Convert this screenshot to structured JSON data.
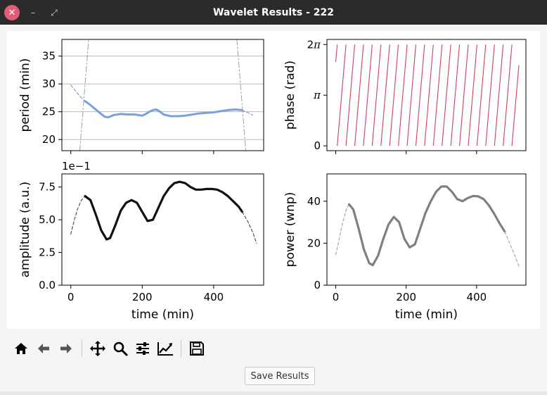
{
  "window": {
    "title": "Wavelet Results - 222",
    "close_glyph": "✕",
    "minimize_glyph": "–",
    "maximize_glyph": "⤢"
  },
  "toolbar": {
    "buttons": [
      {
        "name": "home-button",
        "icon": "home-icon"
      },
      {
        "name": "back-button",
        "icon": "arrow-left-icon"
      },
      {
        "name": "forward-button",
        "icon": "arrow-right-icon"
      },
      {
        "name": "pan-button",
        "icon": "move-icon"
      },
      {
        "name": "zoom-button",
        "icon": "magnifier-icon"
      },
      {
        "name": "configure-subplots-button",
        "icon": "sliders-icon"
      },
      {
        "name": "edit-axis-button",
        "icon": "line-chart-icon"
      },
      {
        "name": "save-figure-button",
        "icon": "floppy-disk-icon"
      }
    ]
  },
  "save_results_label": "Save Results",
  "chart_data": [
    {
      "type": "line",
      "ylabel": "period (min)",
      "xlim": [
        -25,
        540
      ],
      "ylim": [
        18,
        38
      ],
      "yticks": [
        20,
        25,
        30,
        35
      ],
      "grid": "horizontal",
      "series": [
        {
          "style": "dashed",
          "color": "#7aa0e0",
          "x": [
            0,
            10,
            20,
            30,
            40
          ],
          "y": [
            29.8,
            29.0,
            28.2,
            27.5,
            26.9
          ]
        },
        {
          "style": "solid-thick",
          "color": "#7aa0e0",
          "x": [
            40,
            55,
            70,
            85,
            95,
            105,
            120,
            140,
            160,
            180,
            200,
            210,
            220,
            230,
            240,
            250,
            260,
            280,
            300,
            320,
            340,
            360,
            380,
            400,
            420,
            440,
            460,
            480
          ],
          "y": [
            26.9,
            26.2,
            25.4,
            24.6,
            24.1,
            24.0,
            24.4,
            24.6,
            24.5,
            24.5,
            24.3,
            24.6,
            25.0,
            25.3,
            25.4,
            25.0,
            24.5,
            24.2,
            24.2,
            24.3,
            24.5,
            24.7,
            24.8,
            24.9,
            25.1,
            25.3,
            25.4,
            25.3
          ]
        },
        {
          "style": "dashed",
          "color": "#7aa0e0",
          "x": [
            480,
            490,
            500,
            510
          ],
          "y": [
            25.3,
            25.0,
            24.7,
            24.4
          ]
        },
        {
          "style": "dash-dot",
          "color": "#a0a0a0",
          "name": "coi-left",
          "x": [
            25,
            50
          ],
          "y": [
            18,
            38
          ]
        },
        {
          "style": "dash-dot",
          "color": "#a0a0a0",
          "name": "coi-right",
          "x": [
            465,
            490
          ],
          "y": [
            38,
            18
          ]
        }
      ]
    },
    {
      "type": "line",
      "ylabel": "phase (rad)",
      "xlim": [
        -25,
        540
      ],
      "ylim": [
        -0.3,
        6.6
      ],
      "yticks": [
        "0",
        "π",
        "2π"
      ],
      "series": [
        {
          "style": "sawtooth",
          "color": "#d0405a",
          "cycles_start": 0,
          "cycles_end": 520,
          "period_min": 24.8
        }
      ]
    },
    {
      "type": "line",
      "ylabel": "amplitude (a.u.)",
      "xlabel": "time (min)",
      "offset_label": "1e−1",
      "xlim": [
        -25,
        540
      ],
      "ylim": [
        0,
        8.5
      ],
      "yticks": [
        "0.0",
        "2.5",
        "5.0",
        "7.5"
      ],
      "xticks": [
        0,
        200,
        400
      ],
      "series": [
        {
          "style": "dashed",
          "color": "#555555",
          "x": [
            0,
            10,
            20,
            30,
            40
          ],
          "y": [
            3.9,
            5.0,
            5.9,
            6.5,
            6.8
          ]
        },
        {
          "style": "solid-thick",
          "color": "#111111",
          "x": [
            40,
            55,
            70,
            85,
            100,
            110,
            125,
            140,
            155,
            170,
            185,
            200,
            215,
            230,
            245,
            260,
            275,
            290,
            305,
            320,
            335,
            350,
            365,
            380,
            395,
            410,
            425,
            440,
            455,
            470,
            480
          ],
          "y": [
            6.8,
            6.5,
            5.4,
            4.2,
            3.5,
            3.6,
            4.6,
            5.7,
            6.3,
            6.5,
            6.3,
            5.6,
            4.9,
            5.0,
            5.9,
            6.8,
            7.4,
            7.8,
            7.9,
            7.8,
            7.5,
            7.3,
            7.3,
            7.35,
            7.35,
            7.3,
            7.1,
            6.8,
            6.4,
            6.0,
            5.6
          ]
        },
        {
          "style": "dashed",
          "color": "#555555",
          "x": [
            480,
            495,
            510,
            520
          ],
          "y": [
            5.6,
            4.9,
            4.0,
            3.2
          ]
        }
      ]
    },
    {
      "type": "line",
      "ylabel": "power (wnp)",
      "xlabel": "time (min)",
      "xlim": [
        -25,
        540
      ],
      "ylim": [
        0,
        53
      ],
      "yticks": [
        "0",
        "20",
        "40"
      ],
      "xticks": [
        0,
        200,
        400
      ],
      "series": [
        {
          "style": "dashed",
          "color": "#aaaaaa",
          "x": [
            0,
            10,
            20,
            30,
            38
          ],
          "y": [
            14.5,
            22,
            30,
            36,
            38.5
          ]
        },
        {
          "style": "solid-thick",
          "color": "#808080",
          "x": [
            38,
            50,
            65,
            80,
            95,
            105,
            120,
            135,
            150,
            165,
            180,
            195,
            210,
            225,
            240,
            255,
            270,
            285,
            300,
            315,
            330,
            345,
            360,
            375,
            390,
            405,
            420,
            435,
            450,
            465,
            480
          ],
          "y": [
            38.5,
            36,
            27,
            17,
            10.5,
            9.5,
            14,
            22,
            29,
            32.5,
            30,
            22,
            18,
            19.5,
            27,
            34.5,
            40,
            44.5,
            47,
            47,
            44.5,
            41,
            40,
            41.5,
            42.5,
            42.3,
            41,
            38,
            34,
            29.5,
            25.5
          ]
        },
        {
          "style": "dashed",
          "color": "#aaaaaa",
          "x": [
            480,
            495,
            510,
            520
          ],
          "y": [
            25.5,
            19.5,
            13.5,
            9
          ]
        }
      ]
    }
  ]
}
